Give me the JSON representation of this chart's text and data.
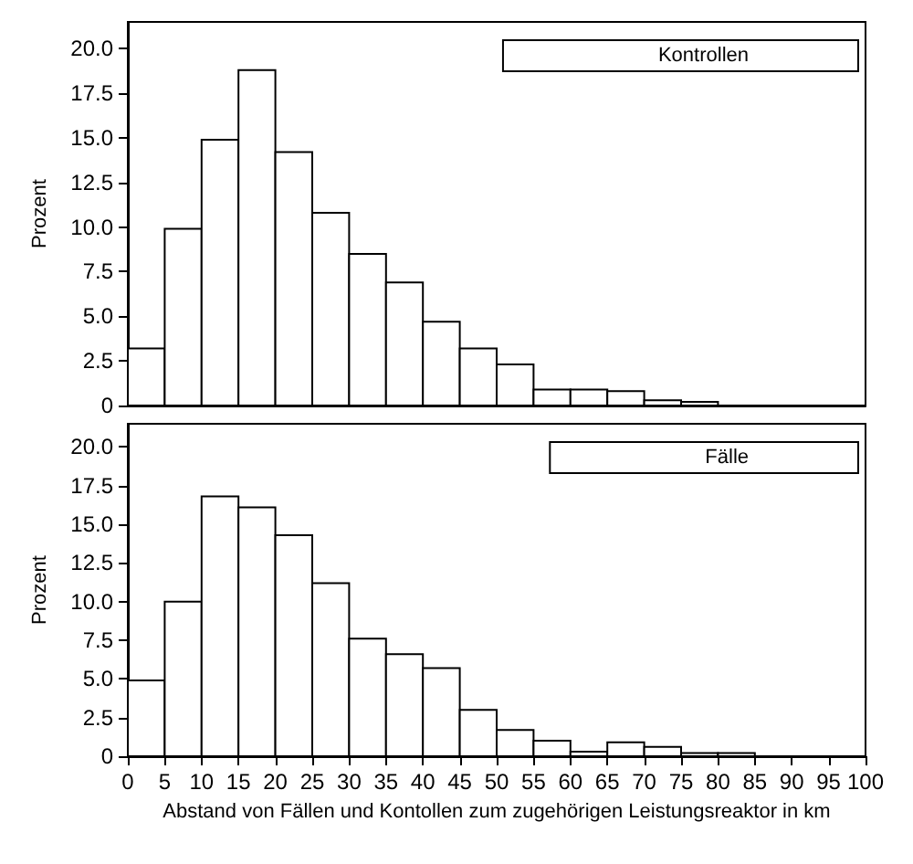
{
  "chart_data": [
    {
      "type": "histogram",
      "ylabel": "Prozent",
      "bins": [
        0,
        5,
        10,
        15,
        20,
        25,
        30,
        35,
        40,
        45,
        50,
        55,
        60,
        65,
        70,
        75,
        80,
        85,
        90,
        95,
        100
      ],
      "series": [
        {
          "name": "Kontrollen",
          "color": "#ffffff",
          "values": [
            3.2,
            9.9,
            14.9,
            18.8,
            14.2,
            10.8,
            8.5,
            6.9,
            4.7,
            3.2,
            2.3,
            0.9,
            0.9,
            0.8,
            0.3,
            0.2,
            0,
            0,
            0,
            0
          ]
        }
      ],
      "xlim": [
        0,
        100
      ],
      "xticks": [
        0,
        5,
        10,
        15,
        20,
        25,
        30,
        35,
        40,
        45,
        50,
        55,
        60,
        65,
        70,
        75,
        80,
        85,
        90,
        95,
        100
      ],
      "ylim": [
        0,
        21.5
      ],
      "yticks": [
        0,
        2.5,
        {
          "value": 5,
          "label": "5.0"
        },
        7.5,
        {
          "value": 10,
          "label": "10.0"
        },
        12.5,
        {
          "value": 15,
          "label": "15.0"
        },
        17.5,
        {
          "value": 20,
          "label": "20.0"
        }
      ],
      "tick_labels": "y",
      "legend": "top right",
      "grid": false
    },
    {
      "type": "histogram",
      "ylabel": "Prozent",
      "xlabel": "Abstand von Fällen und Kontollen zum zugehörigen Leistungsreaktor in km",
      "bins": [
        0,
        5,
        10,
        15,
        20,
        25,
        30,
        35,
        40,
        45,
        50,
        55,
        60,
        65,
        70,
        75,
        80,
        85,
        90,
        95,
        100
      ],
      "series": [
        {
          "name": "Fälle",
          "color": "#ffffff",
          "values": [
            4.9,
            10.0,
            16.8,
            16.1,
            14.3,
            11.2,
            7.6,
            6.6,
            5.7,
            3.0,
            1.7,
            1.0,
            0.3,
            0.9,
            0.6,
            0.2,
            0.2,
            0,
            0,
            0
          ]
        }
      ],
      "xlim": [
        0,
        100
      ],
      "xticks": [
        0,
        5,
        10,
        15,
        20,
        25,
        30,
        35,
        40,
        45,
        50,
        55,
        60,
        65,
        70,
        75,
        80,
        85,
        90,
        95,
        100
      ],
      "ylim": [
        0,
        21.5
      ],
      "yticks": [
        0,
        2.5,
        {
          "value": 5,
          "label": "5.0"
        },
        7.5,
        {
          "value": 10,
          "label": "10.0"
        },
        12.5,
        {
          "value": 15,
          "label": "15.0"
        },
        17.5,
        {
          "value": 20,
          "label": "20.0"
        }
      ],
      "legend": "top right",
      "grid": false
    }
  ]
}
